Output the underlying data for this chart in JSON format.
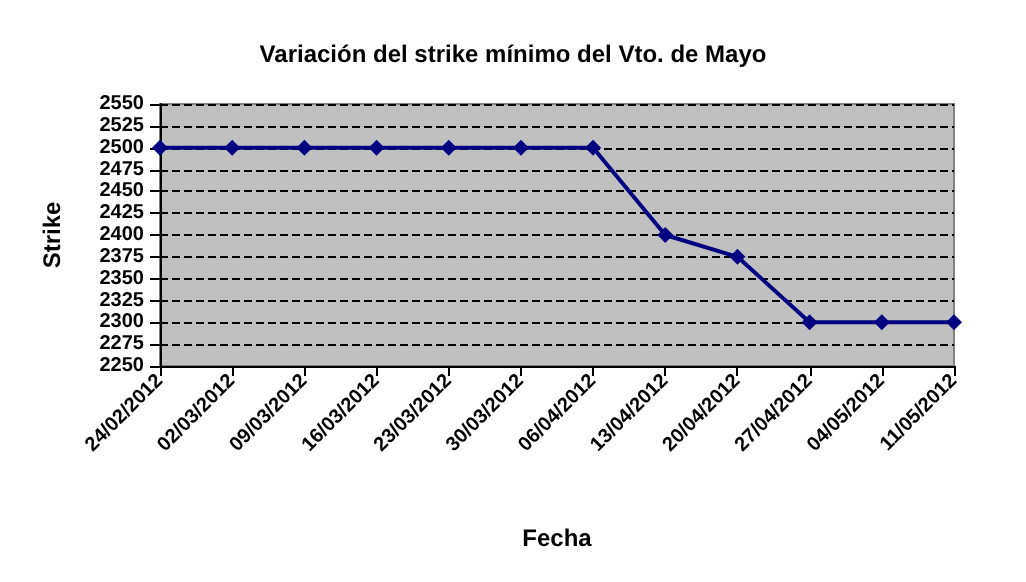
{
  "chart_data": {
    "type": "line",
    "title": "Variación del strike mínimo del Vto. de Mayo",
    "xlabel": "Fecha",
    "ylabel": "Strike",
    "categories": [
      "24/02/2012",
      "02/03/2012",
      "09/03/2012",
      "16/03/2012",
      "23/03/2012",
      "30/03/2012",
      "06/04/2012",
      "13/04/2012",
      "20/04/2012",
      "27/04/2012",
      "04/05/2012",
      "11/05/2012"
    ],
    "series": [
      {
        "color": "#000080",
        "values": [
          2500,
          2500,
          2500,
          2500,
          2500,
          2500,
          2500,
          2400,
          2375,
          2300,
          2300,
          2300
        ]
      }
    ],
    "ylim": [
      2250,
      2550
    ],
    "yticks": [
      2250,
      2275,
      2300,
      2325,
      2350,
      2375,
      2400,
      2425,
      2450,
      2475,
      2500,
      2525,
      2550
    ],
    "grid": "y",
    "marker": "diamond",
    "line_style": "solid"
  }
}
